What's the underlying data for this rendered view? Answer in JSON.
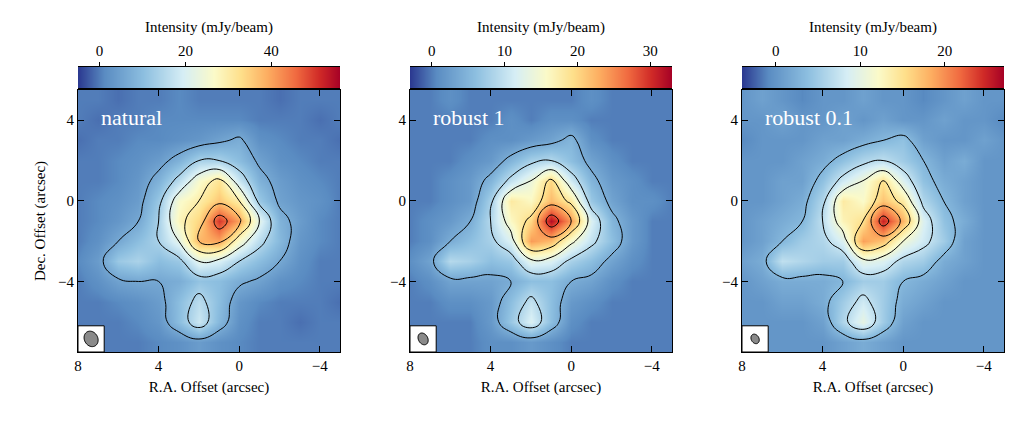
{
  "chart_data": [
    {
      "type": "heatmap",
      "title": "natural",
      "xlabel": "R.A. Offset (arcsec)",
      "ylabel": "Dec. Offset (arcsec)",
      "x": [
        8,
        7,
        6,
        5,
        4,
        3,
        2,
        1,
        0,
        -1,
        -2,
        -3,
        -4,
        -5
      ],
      "y": [
        -7,
        -6,
        -5,
        -4,
        -3,
        -2,
        -1,
        0,
        1,
        2,
        3,
        4,
        5
      ],
      "z": [
        [
          -1,
          0,
          0,
          0,
          1,
          2,
          4,
          2,
          1,
          0,
          0,
          0,
          0,
          0
        ],
        [
          0,
          0,
          0,
          1,
          3,
          10,
          18,
          9,
          2,
          0,
          0,
          -1,
          0,
          0
        ],
        [
          0,
          0,
          1,
          2,
          4,
          10,
          16,
          10,
          3,
          1,
          0,
          0,
          0,
          -1
        ],
        [
          0,
          2,
          5,
          6,
          6,
          7,
          11,
          10,
          7,
          5,
          2,
          1,
          0,
          0
        ],
        [
          1,
          4,
          12,
          14,
          10,
          12,
          22,
          20,
          14,
          10,
          6,
          2,
          0,
          0
        ],
        [
          0,
          2,
          6,
          10,
          14,
          22,
          38,
          40,
          26,
          16,
          9,
          3,
          1,
          0
        ],
        [
          0,
          1,
          3,
          6,
          14,
          28,
          34,
          50,
          40,
          22,
          8,
          4,
          1,
          0
        ],
        [
          0,
          1,
          2,
          4,
          12,
          26,
          30,
          36,
          30,
          12,
          5,
          3,
          2,
          0
        ],
        [
          0,
          0,
          1,
          3,
          8,
          16,
          26,
          32,
          18,
          8,
          4,
          2,
          1,
          0
        ],
        [
          0,
          0,
          1,
          2,
          4,
          8,
          14,
          14,
          10,
          5,
          2,
          1,
          0,
          0
        ],
        [
          -1,
          0,
          0,
          1,
          1,
          2,
          3,
          5,
          7,
          2,
          1,
          0,
          0,
          -1
        ],
        [
          0,
          -1,
          0,
          0,
          1,
          1,
          1,
          1,
          1,
          0,
          0,
          0,
          -1,
          0
        ],
        [
          0,
          0,
          -1,
          0,
          0,
          1,
          0,
          0,
          0,
          0,
          -1,
          0,
          0,
          0
        ]
      ],
      "xlim": [
        8,
        -5
      ],
      "ylim": [
        -7.5,
        5.5
      ],
      "xticks": [
        8,
        4,
        0,
        -4
      ],
      "yticks": [
        4,
        0,
        -4
      ],
      "colorbar": {
        "label": "Intensity (mJy/beam)",
        "range": [
          -5,
          56
        ],
        "ticks": [
          0,
          20,
          40
        ]
      },
      "contours": {
        "start": 6,
        "end": 46,
        "size": 8
      },
      "beam": {
        "major": 0.8,
        "minor": 0.66,
        "pa": 30
      }
    },
    {
      "type": "heatmap",
      "title": "robust 1",
      "xlabel": "R.A. Offset (arcsec)",
      "x": [
        8,
        7,
        6,
        5,
        4,
        3,
        2,
        1,
        0,
        -1,
        -2,
        -3,
        -4,
        -5
      ],
      "y": [
        -7,
        -6,
        -5,
        -4,
        -3,
        -2,
        -1,
        0,
        1,
        2,
        3,
        4,
        5
      ],
      "z": [
        [
          0,
          0,
          0,
          0,
          1,
          1,
          2,
          1,
          0,
          0,
          0,
          0,
          0,
          0
        ],
        [
          0,
          0,
          0,
          0,
          2,
          7,
          12,
          6,
          1,
          0,
          0,
          0,
          0,
          0
        ],
        [
          0,
          0,
          1,
          1,
          2,
          6,
          10,
          6,
          2,
          1,
          0,
          0,
          0,
          0
        ],
        [
          0,
          1,
          3,
          3,
          3,
          4,
          6,
          6,
          4,
          3,
          1,
          0,
          0,
          0
        ],
        [
          1,
          3,
          9,
          8,
          6,
          7,
          13,
          12,
          8,
          6,
          3,
          1,
          0,
          0
        ],
        [
          0,
          1,
          4,
          6,
          8,
          12,
          24,
          22,
          15,
          10,
          6,
          2,
          0,
          0
        ],
        [
          0,
          1,
          2,
          4,
          9,
          16,
          20,
          32,
          24,
          12,
          5,
          2,
          0,
          0
        ],
        [
          0,
          0,
          1,
          2,
          8,
          18,
          16,
          22,
          18,
          7,
          3,
          1,
          1,
          0
        ],
        [
          0,
          0,
          1,
          2,
          5,
          10,
          14,
          20,
          11,
          5,
          2,
          1,
          0,
          0
        ],
        [
          0,
          0,
          0,
          1,
          2,
          5,
          8,
          9,
          6,
          3,
          1,
          0,
          0,
          0
        ],
        [
          0,
          0,
          0,
          0,
          1,
          1,
          2,
          3,
          5,
          1,
          0,
          0,
          0,
          0
        ],
        [
          0,
          0,
          0,
          0,
          0,
          1,
          0,
          1,
          1,
          0,
          0,
          0,
          0,
          0
        ],
        [
          0,
          0,
          1,
          0,
          0,
          0,
          0,
          0,
          0,
          1,
          0,
          0,
          0,
          0
        ]
      ],
      "xlim": [
        8,
        -5
      ],
      "ylim": [
        -7.5,
        5.5
      ],
      "xticks": [
        8,
        4,
        0,
        -4
      ],
      "yticks": [
        4,
        0,
        -4
      ],
      "colorbar": {
        "label": "Intensity (mJy/beam)",
        "range": [
          -3,
          33
        ],
        "ticks": [
          0,
          10,
          20,
          30
        ]
      },
      "contours": {
        "start": 4,
        "end": 29,
        "size": 5
      },
      "beam": {
        "major": 0.62,
        "minor": 0.46,
        "pa": 30
      }
    },
    {
      "type": "heatmap",
      "title": "robust 0.1",
      "xlabel": "R.A. Offset (arcsec)",
      "x": [
        8,
        7,
        6,
        5,
        4,
        3,
        2,
        1,
        0,
        -1,
        -2,
        -3,
        -4,
        -5
      ],
      "y": [
        -7,
        -6,
        -5,
        -4,
        -3,
        -2,
        -1,
        0,
        1,
        2,
        3,
        4,
        5
      ],
      "z": [
        [
          0,
          0,
          0,
          0,
          0,
          1,
          2,
          1,
          0,
          0,
          0,
          0,
          0,
          0
        ],
        [
          0,
          0,
          0,
          0,
          1,
          6,
          10,
          5,
          1,
          0,
          0,
          0,
          0,
          0
        ],
        [
          0,
          0,
          1,
          1,
          2,
          5,
          8,
          5,
          2,
          1,
          0,
          0,
          0,
          0
        ],
        [
          0,
          1,
          2,
          2,
          2,
          3,
          5,
          5,
          3,
          2,
          1,
          0,
          0,
          0
        ],
        [
          1,
          2,
          7,
          6,
          5,
          5,
          10,
          9,
          6,
          5,
          2,
          1,
          0,
          0
        ],
        [
          0,
          1,
          3,
          5,
          6,
          9,
          19,
          17,
          11,
          8,
          5,
          1,
          0,
          0
        ],
        [
          0,
          1,
          2,
          3,
          7,
          13,
          15,
          25,
          18,
          9,
          4,
          2,
          0,
          0
        ],
        [
          0,
          0,
          1,
          2,
          6,
          14,
          12,
          17,
          14,
          6,
          3,
          1,
          0,
          0
        ],
        [
          0,
          0,
          1,
          1,
          4,
          8,
          11,
          15,
          9,
          4,
          2,
          1,
          0,
          0
        ],
        [
          0,
          0,
          0,
          1,
          2,
          4,
          6,
          7,
          5,
          3,
          1,
          2,
          0,
          0
        ],
        [
          -1,
          0,
          0,
          0,
          1,
          1,
          2,
          3,
          4,
          1,
          0,
          0,
          1,
          0
        ],
        [
          0,
          0,
          1,
          0,
          0,
          1,
          0,
          1,
          0,
          0,
          1,
          0,
          0,
          -1
        ],
        [
          0,
          1,
          0,
          -1,
          0,
          0,
          1,
          0,
          0,
          -1,
          0,
          1,
          0,
          0
        ]
      ],
      "xlim": [
        8,
        -5
      ],
      "ylim": [
        -7.5,
        5.5
      ],
      "xticks": [
        8,
        4,
        0,
        -4
      ],
      "yticks": [
        4,
        0,
        -4
      ],
      "colorbar": {
        "label": "Intensity (mJy/beam)",
        "range": [
          -4,
          27
        ],
        "ticks": [
          0,
          10,
          20
        ]
      },
      "contours": {
        "start": 3,
        "end": 23,
        "size": 4
      },
      "beam": {
        "major": 0.5,
        "minor": 0.38,
        "pa": 30
      }
    }
  ]
}
